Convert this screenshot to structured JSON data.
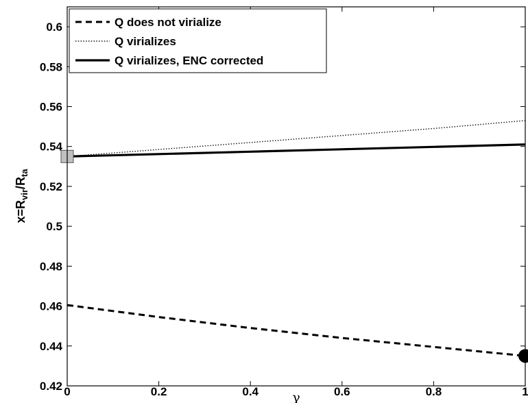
{
  "chart_data": {
    "type": "line",
    "xlabel": "γ",
    "ylabel": {
      "main": "x=R",
      "sub1": "vir",
      "mid": "/R",
      "sub2": "ta"
    },
    "xlim": [
      0,
      1
    ],
    "ylim": [
      0.42,
      0.61
    ],
    "xticks": [
      0,
      0.2,
      0.4,
      0.6,
      0.8,
      1
    ],
    "xtick_labels": [
      "0",
      "0.2",
      "0.4",
      "0.6",
      "0.8",
      "1"
    ],
    "yticks": [
      0.42,
      0.44,
      0.46,
      0.48,
      0.5,
      0.52,
      0.54,
      0.56,
      0.58,
      0.6
    ],
    "ytick_labels": [
      "0.42",
      "0.44",
      "0.46",
      "0.48",
      "0.5",
      "0.52",
      "0.54",
      "0.56",
      "0.58",
      "0.6"
    ],
    "grid": false,
    "legend_position": "top-left",
    "series": [
      {
        "name": "Q does not virialize",
        "style": "dashed",
        "color": "#000000",
        "x": [
          0,
          0.2,
          0.4,
          0.6,
          0.8,
          1.0
        ],
        "y": [
          0.4605,
          0.4545,
          0.449,
          0.444,
          0.4395,
          0.435
        ]
      },
      {
        "name": "Q virializes",
        "style": "dotted",
        "color": "#000000",
        "x": [
          0,
          0.2,
          0.4,
          0.6,
          0.8,
          1.0
        ],
        "y": [
          0.535,
          0.5385,
          0.542,
          0.5455,
          0.549,
          0.553
        ]
      },
      {
        "name": "Q virializes, ENC corrected",
        "style": "solid",
        "color": "#000000",
        "x": [
          0,
          0.2,
          0.4,
          0.6,
          0.8,
          1.0
        ],
        "y": [
          0.535,
          0.5362,
          0.5374,
          0.5386,
          0.5398,
          0.541
        ]
      }
    ],
    "markers": [
      {
        "shape": "square",
        "x": 0,
        "y": 0.535,
        "color": "#c0c0c0"
      },
      {
        "shape": "circle",
        "x": 1,
        "y": 0.435,
        "color": "#000000"
      }
    ]
  }
}
